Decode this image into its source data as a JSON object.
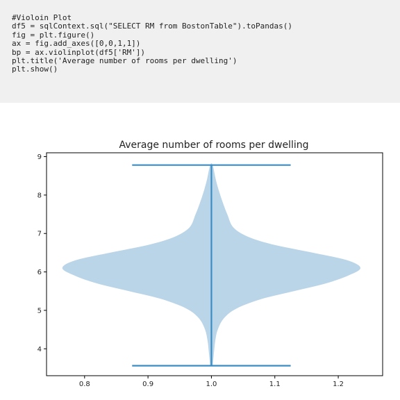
{
  "code_cell": {
    "lines": [
      "#Violoin Plot",
      "df5 = sqlContext.sql(\"SELECT RM from BostonTable\").toPandas()",
      "fig = plt.figure()",
      "ax = fig.add_axes([0,0,1,1])",
      "bp = ax.violinplot(df5['RM'])",
      "plt.title('Average number of rooms per dwelling')",
      "plt.show()"
    ]
  },
  "chart_data": {
    "type": "violin",
    "title": "Average number of rooms per dwelling",
    "xlabel": "",
    "ylabel": "",
    "xlim": [
      0.74,
      1.27
    ],
    "ylim": [
      3.3,
      9.1
    ],
    "xticks": [
      0.8,
      0.9,
      1.0,
      1.1,
      1.2
    ],
    "xtick_labels": [
      "0.8",
      "0.9",
      "1.0",
      "1.1",
      "1.2"
    ],
    "yticks": [
      4,
      5,
      6,
      7,
      8,
      9
    ],
    "ytick_labels": [
      "4",
      "5",
      "6",
      "7",
      "8",
      "9"
    ],
    "position": 1.0,
    "min": 3.56,
    "max": 8.78,
    "cap_halfwidth": 0.125,
    "density_profile": [
      {
        "y": 3.56,
        "halfwidth": 0.002
      },
      {
        "y": 3.9,
        "halfwidth": 0.004
      },
      {
        "y": 4.2,
        "halfwidth": 0.006
      },
      {
        "y": 4.5,
        "halfwidth": 0.01
      },
      {
        "y": 4.8,
        "halfwidth": 0.02
      },
      {
        "y": 5.05,
        "halfwidth": 0.04
      },
      {
        "y": 5.3,
        "halfwidth": 0.08
      },
      {
        "y": 5.5,
        "halfwidth": 0.13
      },
      {
        "y": 5.7,
        "halfwidth": 0.18
      },
      {
        "y": 5.9,
        "halfwidth": 0.215
      },
      {
        "y": 6.1,
        "halfwidth": 0.235
      },
      {
        "y": 6.3,
        "halfwidth": 0.215
      },
      {
        "y": 6.5,
        "halfwidth": 0.16
      },
      {
        "y": 6.7,
        "halfwidth": 0.1
      },
      {
        "y": 6.9,
        "halfwidth": 0.06
      },
      {
        "y": 7.15,
        "halfwidth": 0.035
      },
      {
        "y": 7.5,
        "halfwidth": 0.025
      },
      {
        "y": 7.8,
        "halfwidth": 0.018
      },
      {
        "y": 8.1,
        "halfwidth": 0.012
      },
      {
        "y": 8.4,
        "halfwidth": 0.007
      },
      {
        "y": 8.78,
        "halfwidth": 0.002
      }
    ],
    "colors": {
      "body": "#bad5e8",
      "lines": "#3a8cc4",
      "axes": "#000000",
      "text": "#222222"
    }
  }
}
